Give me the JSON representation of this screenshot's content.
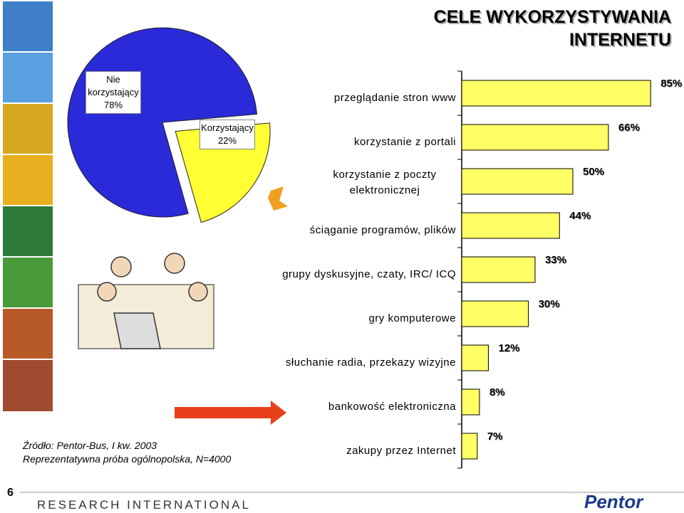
{
  "title": [
    "CELE WYKORZYSTYWANIA",
    "INTERNETU"
  ],
  "source": [
    "Źródło: Pentor-Bus, I kw. 2003",
    "Reprezentatywna próba ogólnopolska, N=4000"
  ],
  "page_number": "6",
  "footer_left": "RESEARCH INTERNATIONAL",
  "footer_right": "Pentor",
  "chart_data": [
    {
      "type": "pie",
      "categories": [
        "Nie korzystający",
        "Korzystający"
      ],
      "values": [
        78,
        22
      ],
      "value_labels": [
        "78%",
        "22%"
      ],
      "colors": [
        "#2a2ad8",
        "#ffff33"
      ]
    },
    {
      "type": "bar",
      "categories": [
        "przeglądanie stron www",
        "korzystanie z portali",
        "korzystanie z poczty elektronicznej",
        "ściąganie programów, plików",
        "grupy dyskusyjne, czaty, IRC/ ICQ",
        "gry komputerowe",
        "słuchanie radia, przekazy wizyjne",
        "bankowość elektroniczna",
        "zakupy przez Internet"
      ],
      "values": [
        85,
        66,
        50,
        44,
        33,
        30,
        12,
        8,
        7
      ],
      "value_labels": [
        "85%",
        "66%",
        "50%",
        "44%",
        "33%",
        "30%",
        "12%",
        "8%",
        "7%"
      ],
      "color": "#ffff66",
      "xlim": [
        0,
        100
      ]
    }
  ]
}
